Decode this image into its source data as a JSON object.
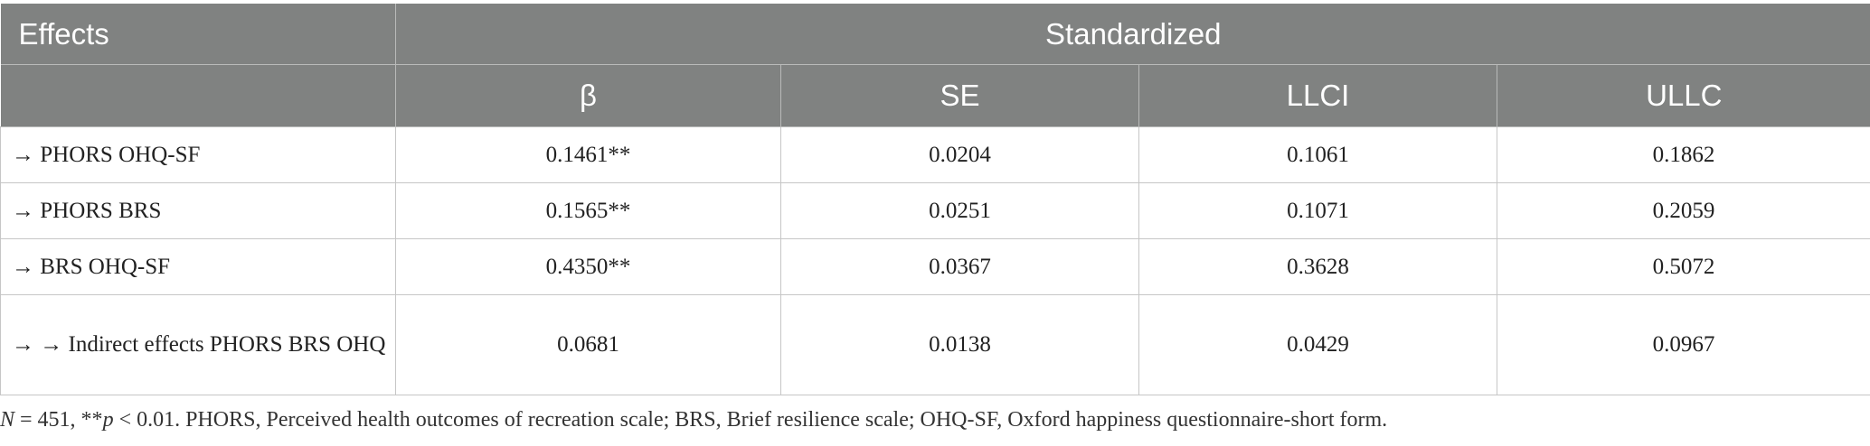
{
  "table": {
    "header_effects": "Effects",
    "header_group": "Standardized",
    "columns": [
      "β",
      "SE",
      "LLCI",
      "ULLC"
    ],
    "rows": [
      {
        "effect": "→ PHORS OHQ-SF",
        "beta": "0.1461**",
        "se": "0.0204",
        "llci": "0.1061",
        "ullc": "0.1862"
      },
      {
        "effect": "→ PHORS BRS",
        "beta": "0.1565**",
        "se": "0.0251",
        "llci": "0.1071",
        "ullc": "0.2059"
      },
      {
        "effect": "→ BRS OHQ-SF",
        "beta": "0.4350**",
        "se": "0.0367",
        "llci": "0.3628",
        "ullc": "0.5072"
      },
      {
        "effect": "→ → Indirect effects PHORS BRS OHQ",
        "beta": "0.0681",
        "se": "0.0138",
        "llci": "0.0429",
        "ullc": "0.0967"
      }
    ]
  },
  "footnote": {
    "n_label": "N",
    "n_value": " = 451, **",
    "p_label": "p",
    "rest": " < 0.01. PHORS, Perceived health outcomes of recreation scale; BRS, Brief resilience scale; OHQ-SF, Oxford happiness questionnaire-short form."
  }
}
